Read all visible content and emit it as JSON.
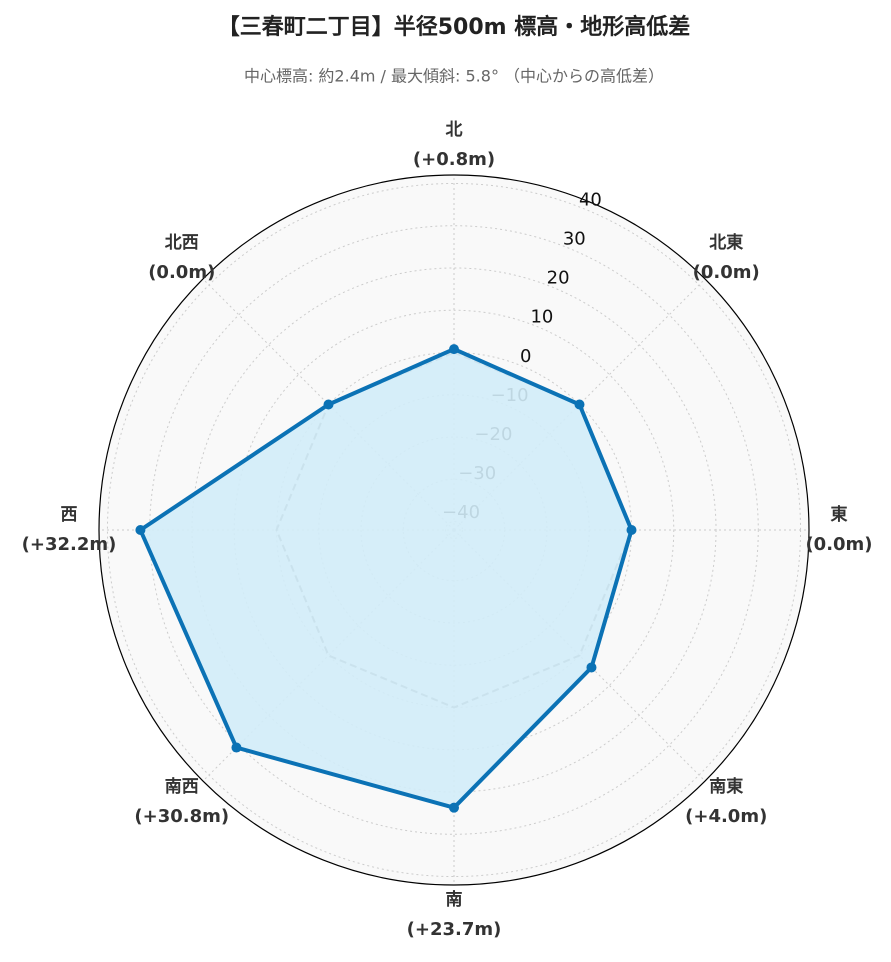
{
  "chart_data": {
    "type": "radar",
    "title": "【三春町二丁目】半径500m 標高・地形高低差",
    "subtitle": "中心標高: 約2.4m / 最大傾斜: 5.8° （中心からの高低差）",
    "categories": [
      "北",
      "北東",
      "東",
      "南東",
      "南",
      "南西",
      "西",
      "北西"
    ],
    "value_labels": [
      "(+0.8m)",
      "(0.0m)",
      "(0.0m)",
      "(+4.0m)",
      "(+23.7m)",
      "(+30.8m)",
      "(+32.2m)",
      "(0.0m)"
    ],
    "series": [
      {
        "color": "#888888",
        "style": "dashed",
        "values": [
          0,
          0,
          0,
          0,
          0,
          0,
          0,
          0
        ]
      },
      {
        "color": "#0b72b5",
        "fill": "#d2ecf8",
        "style": "solid",
        "values": [
          0.8,
          0.0,
          0.0,
          4.0,
          23.7,
          30.8,
          32.2,
          0.0
        ]
      }
    ],
    "ylim": [
      -42,
      42
    ],
    "yticks": [
      {
        "value": -40,
        "label": "−40"
      },
      {
        "value": -30,
        "label": "−30"
      },
      {
        "value": -20,
        "label": "−20"
      },
      {
        "value": -10,
        "label": "−10"
      },
      0,
      10,
      20,
      30,
      40
    ],
    "grid": true
  }
}
